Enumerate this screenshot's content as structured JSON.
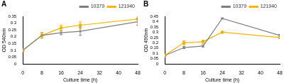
{
  "chart_data": [
    {
      "type": "line",
      "title": "A",
      "x_label": "Culture time (h)",
      "y_label": "OD 540nm",
      "xlim": [
        0,
        48
      ],
      "xticks": [
        0,
        8,
        16,
        24,
        32,
        40,
        48
      ],
      "ylim": [
        0,
        0.35
      ],
      "yticks": [
        0,
        0.05,
        0.1,
        0.15,
        0.2,
        0.25,
        0.3,
        0.35
      ],
      "grid": false,
      "legend": "upper right",
      "series": [
        {
          "name": "10379",
          "color": "#7f7f7f",
          "marker": "x",
          "x": [
            0,
            8,
            16,
            24,
            48
          ],
          "values": [
            0.1,
            0.21,
            0.23,
            0.24,
            0.31
          ],
          "errors": [
            0.005,
            0.02,
            0.015,
            0.03,
            0.025
          ]
        },
        {
          "name": "121940",
          "color": "#f5b400",
          "marker": "o",
          "x": [
            0,
            8,
            16,
            24,
            48
          ],
          "values": [
            0.1,
            0.21,
            0.265,
            0.285,
            0.33
          ],
          "errors": [
            0.005,
            0.02,
            0.02,
            0.025,
            0.02
          ]
        }
      ]
    },
    {
      "type": "line",
      "title": "B",
      "x_label": "Culture time (h)",
      "y_label": "OD 490nm",
      "xlim": [
        0,
        48
      ],
      "xticks": [
        0,
        8,
        16,
        24,
        32,
        40,
        48
      ],
      "ylim": [
        0,
        0.45
      ],
      "yticks": [
        0,
        0.05,
        0.1,
        0.15,
        0.2,
        0.25,
        0.3,
        0.35,
        0.4,
        0.45
      ],
      "grid": false,
      "legend": "upper right",
      "series": [
        {
          "name": "10379",
          "color": "#7f7f7f",
          "marker": "x",
          "x": [
            0,
            8,
            16,
            24,
            48
          ],
          "values": [
            0.08,
            0.155,
            0.17,
            0.43,
            0.27
          ],
          "errors": [
            0.005,
            0.01,
            0.01,
            0.005,
            0.01
          ]
        },
        {
          "name": "121940",
          "color": "#f5b400",
          "marker": "o",
          "x": [
            0,
            8,
            16,
            24,
            48
          ],
          "values": [
            0.08,
            0.2,
            0.21,
            0.3,
            0.25
          ],
          "errors": [
            0.005,
            0.02,
            0.015,
            0.005,
            0.01
          ]
        }
      ]
    }
  ]
}
